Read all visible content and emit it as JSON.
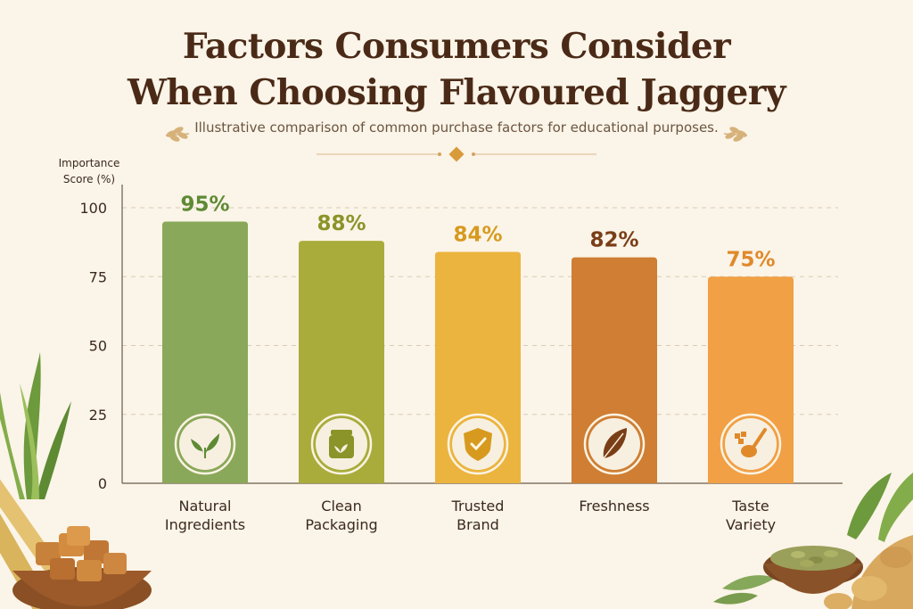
{
  "chart_data": {
    "type": "bar",
    "title_lines": [
      "Factors Consumers Consider",
      "When Choosing Flavoured Jaggery"
    ],
    "subtitle": "Illustrative comparison of common purchase factors for educational purposes.",
    "ylabel_lines": [
      "Importance",
      "Score (%)"
    ],
    "ylim": [
      0,
      100
    ],
    "yticks": [
      "0",
      "25",
      "50",
      "75",
      "100"
    ],
    "grid": true,
    "categories": [
      [
        "Natural",
        "Ingredients"
      ],
      [
        "Clean",
        "Packaging"
      ],
      [
        "Trusted",
        "Brand"
      ],
      [
        "Freshness"
      ],
      [
        "Taste",
        "Variety"
      ]
    ],
    "values": [
      95,
      88,
      84,
      82,
      75
    ],
    "labels": [
      "95%",
      "88%",
      "84%",
      "82%",
      "75%"
    ],
    "bar_colors": [
      "#8aa85a",
      "#a9ac3b",
      "#ebb43e",
      "#cf7e33",
      "#f1a045"
    ],
    "label_colors": [
      "#5e8a34",
      "#8a9428",
      "#d79a1e",
      "#7a3e17",
      "#e0892a"
    ],
    "icons": [
      "leaf-icon",
      "jar-icon",
      "shield-check-icon",
      "single-leaf-icon",
      "spoon-spice-icon"
    ]
  }
}
